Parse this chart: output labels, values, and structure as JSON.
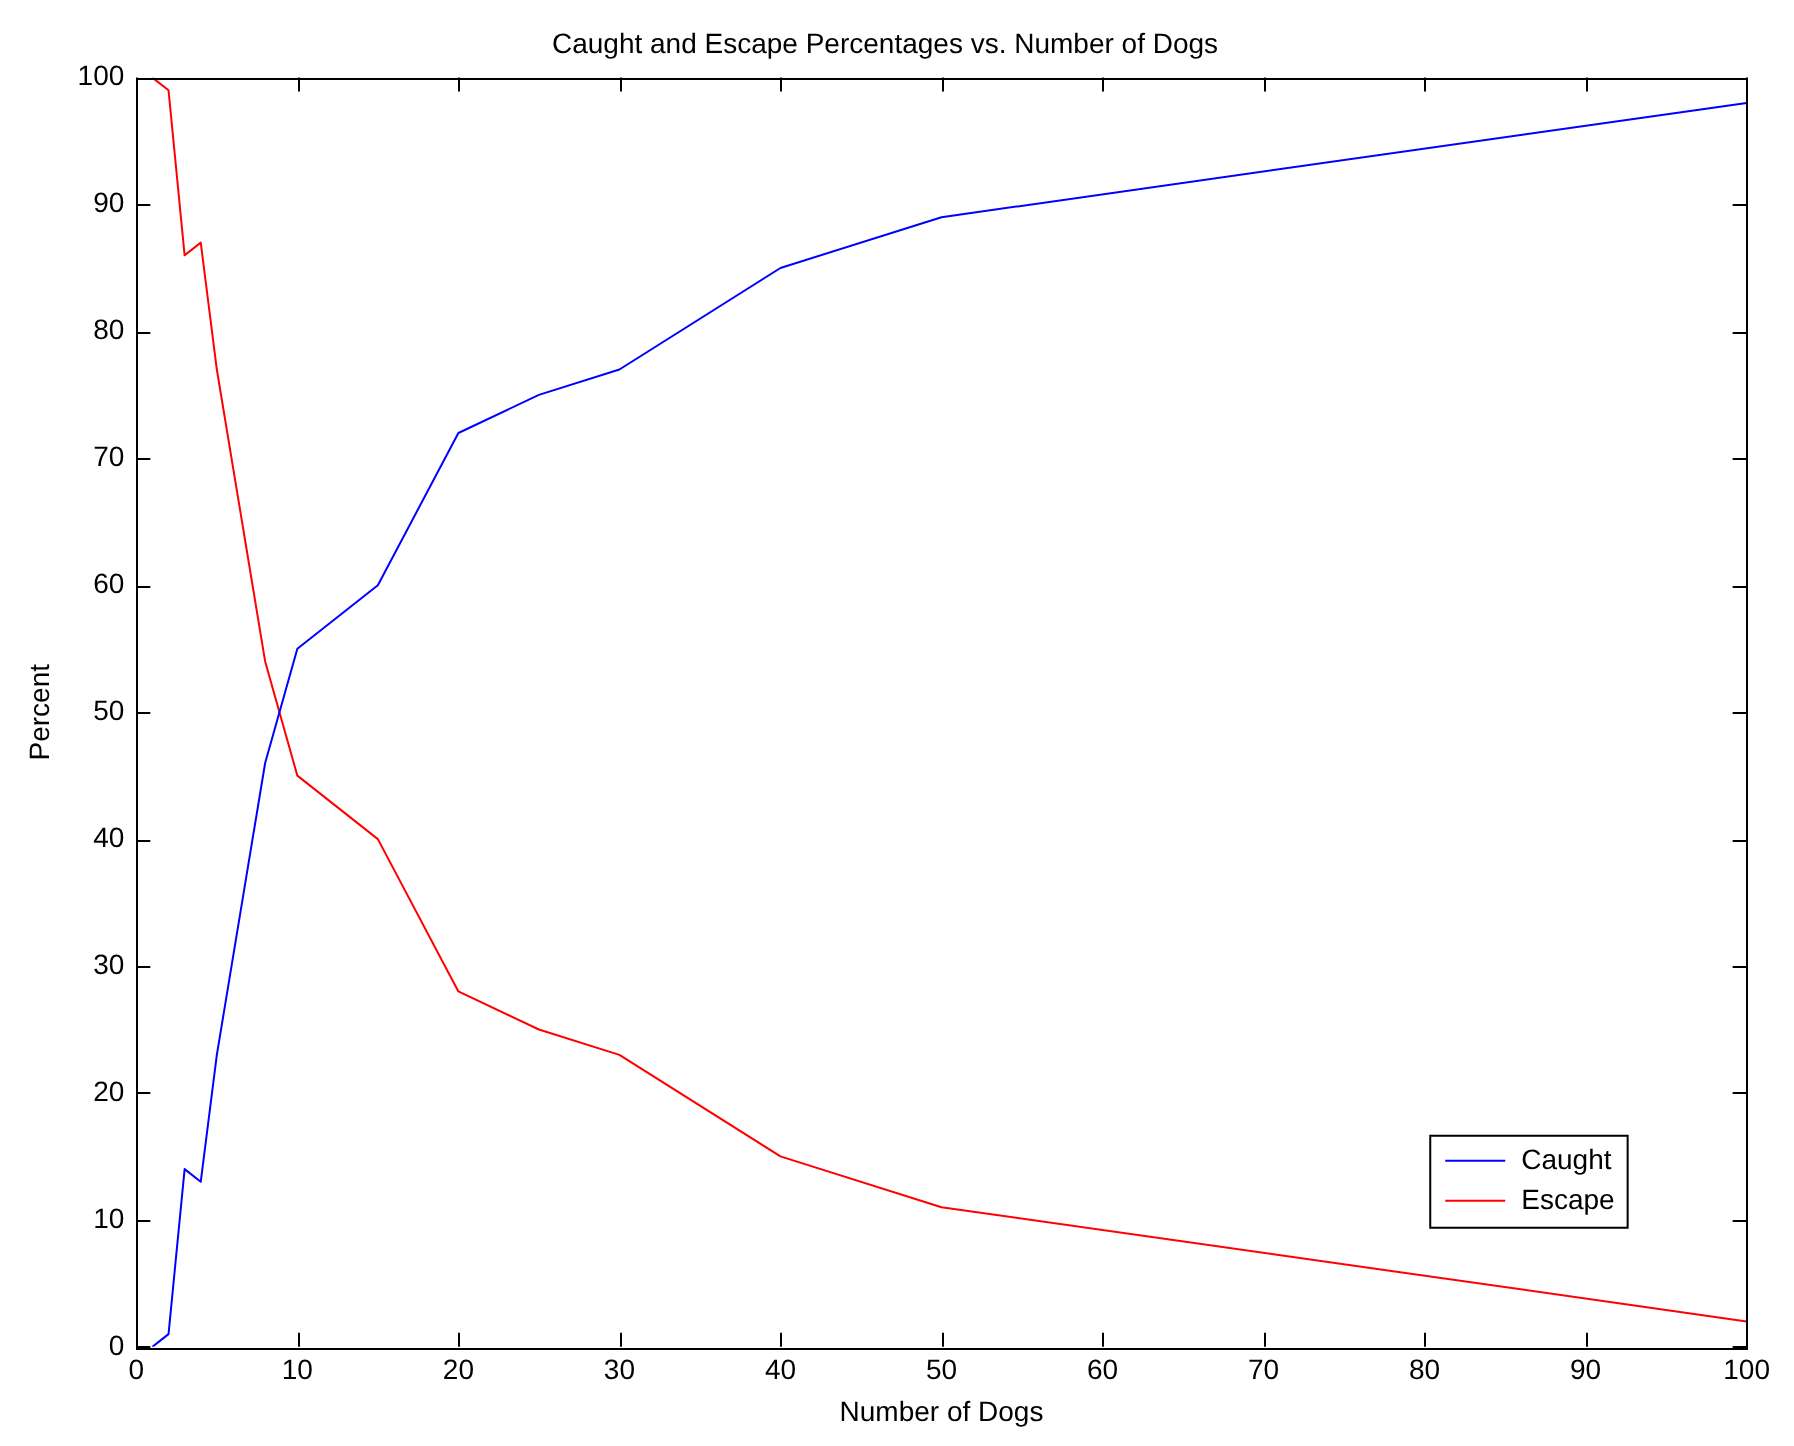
{
  "chart_data": {
    "type": "line",
    "title": "Caught and Escape Percentages vs. Number of Dogs",
    "xlabel": "Number of Dogs",
    "ylabel": "Percent",
    "x": [
      1,
      2,
      3,
      4,
      5,
      8,
      10,
      15,
      20,
      25,
      30,
      40,
      50,
      100
    ],
    "series": [
      {
        "name": "Caught",
        "color": "#0000ff",
        "values": [
          0,
          1,
          14,
          13,
          23,
          46,
          55,
          60,
          72,
          75,
          77,
          85,
          89,
          98
        ]
      },
      {
        "name": "Escape",
        "color": "#ff0000",
        "values": [
          100,
          99,
          86,
          87,
          77,
          54,
          45,
          40,
          28,
          25,
          23,
          15,
          11,
          2
        ]
      }
    ],
    "xlim": [
      0,
      100
    ],
    "xticks": [
      0,
      10,
      20,
      30,
      40,
      50,
      60,
      70,
      80,
      90,
      100
    ],
    "ylim": [
      0,
      100
    ],
    "yticks": [
      0,
      10,
      20,
      30,
      40,
      50,
      60,
      70,
      80,
      90,
      100
    ],
    "grid": false,
    "legend": "bottom right",
    "marker": "none",
    "line_style": "solid"
  }
}
